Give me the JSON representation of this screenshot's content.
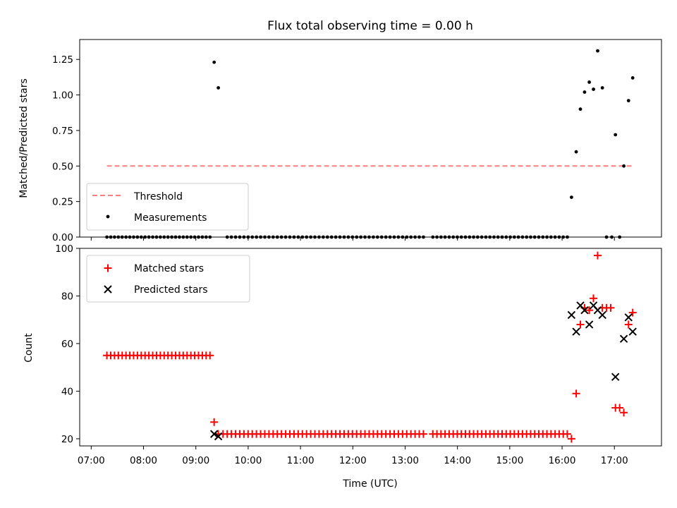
{
  "chart_data": [
    {
      "type": "scatter",
      "title": "Flux total observing time = 0.00 h",
      "xlabel": "",
      "ylabel": "Matched/Predicted stars",
      "x_unit": "hours UTC (decimal)",
      "xlim": [
        6.78,
        17.9
      ],
      "ylim": [
        0,
        1.39
      ],
      "yticks": [
        "0.00",
        "0.25",
        "0.50",
        "0.75",
        "1.00",
        "1.25"
      ],
      "legend_position": "lower-left",
      "threshold": {
        "name": "Threshold",
        "value": 0.5,
        "x": [
          7.3,
          17.35
        ],
        "color": "#ff7f7f"
      },
      "series": [
        {
          "name": "Measurements",
          "color": "#000000",
          "points": [
            [
              9.35,
              1.23
            ],
            [
              9.43,
              1.05
            ],
            [
              16.18,
              0.28
            ],
            [
              16.27,
              0.6
            ],
            [
              16.35,
              0.9
            ],
            [
              16.43,
              1.02
            ],
            [
              16.52,
              1.09
            ],
            [
              16.6,
              1.04
            ],
            [
              16.68,
              1.31
            ],
            [
              16.77,
              1.05
            ],
            [
              17.02,
              0.72
            ],
            [
              17.18,
              0.5
            ],
            [
              17.27,
              0.96
            ],
            [
              17.35,
              1.12
            ]
          ],
          "zero_runs": [
            [
              7.3,
              9.27,
              28
            ],
            [
              9.6,
              13.35,
              48
            ],
            [
              13.53,
              16.1,
              34
            ],
            [
              16.85,
              16.95,
              2
            ],
            [
              17.1,
              17.1,
              1
            ]
          ]
        }
      ]
    },
    {
      "type": "scatter",
      "title": "",
      "xlabel": "Time (UTC)",
      "ylabel": "Count",
      "x_unit": "hours UTC (decimal)",
      "xlim": [
        6.78,
        17.9
      ],
      "ylim": [
        17,
        100
      ],
      "yticks": [
        "20",
        "40",
        "60",
        "80",
        "100"
      ],
      "xticks": [
        "07:00",
        "08:00",
        "09:00",
        "10:00",
        "11:00",
        "12:00",
        "13:00",
        "14:00",
        "15:00",
        "16:00",
        "17:00"
      ],
      "legend_position": "upper-left",
      "series": [
        {
          "name": "Matched stars",
          "color": "#ff0000",
          "marker": "+",
          "runs": [
            [
              7.3,
              9.27,
              28,
              55
            ],
            [
              9.6,
              13.35,
              48,
              22
            ],
            [
              13.53,
              16.1,
              34,
              22
            ]
          ],
          "points": [
            [
              9.35,
              27
            ],
            [
              9.43,
              22
            ],
            [
              9.52,
              22
            ],
            [
              16.18,
              20
            ],
            [
              16.27,
              39
            ],
            [
              16.35,
              68
            ],
            [
              16.43,
              75
            ],
            [
              16.52,
              74
            ],
            [
              16.6,
              79
            ],
            [
              16.68,
              97
            ],
            [
              16.77,
              75
            ],
            [
              16.85,
              75
            ],
            [
              16.93,
              75
            ],
            [
              17.02,
              33
            ],
            [
              17.1,
              33
            ],
            [
              17.18,
              31
            ],
            [
              17.27,
              68
            ],
            [
              17.35,
              73
            ]
          ]
        },
        {
          "name": "Predicted stars",
          "color": "#000000",
          "marker": "x",
          "points": [
            [
              9.35,
              22
            ],
            [
              9.43,
              21
            ],
            [
              16.18,
              72
            ],
            [
              16.27,
              65
            ],
            [
              16.35,
              76
            ],
            [
              16.43,
              74
            ],
            [
              16.52,
              68
            ],
            [
              16.6,
              76
            ],
            [
              16.68,
              74
            ],
            [
              16.77,
              72
            ],
            [
              17.02,
              46
            ],
            [
              17.18,
              62
            ],
            [
              17.27,
              71
            ],
            [
              17.35,
              65
            ]
          ]
        }
      ]
    }
  ]
}
